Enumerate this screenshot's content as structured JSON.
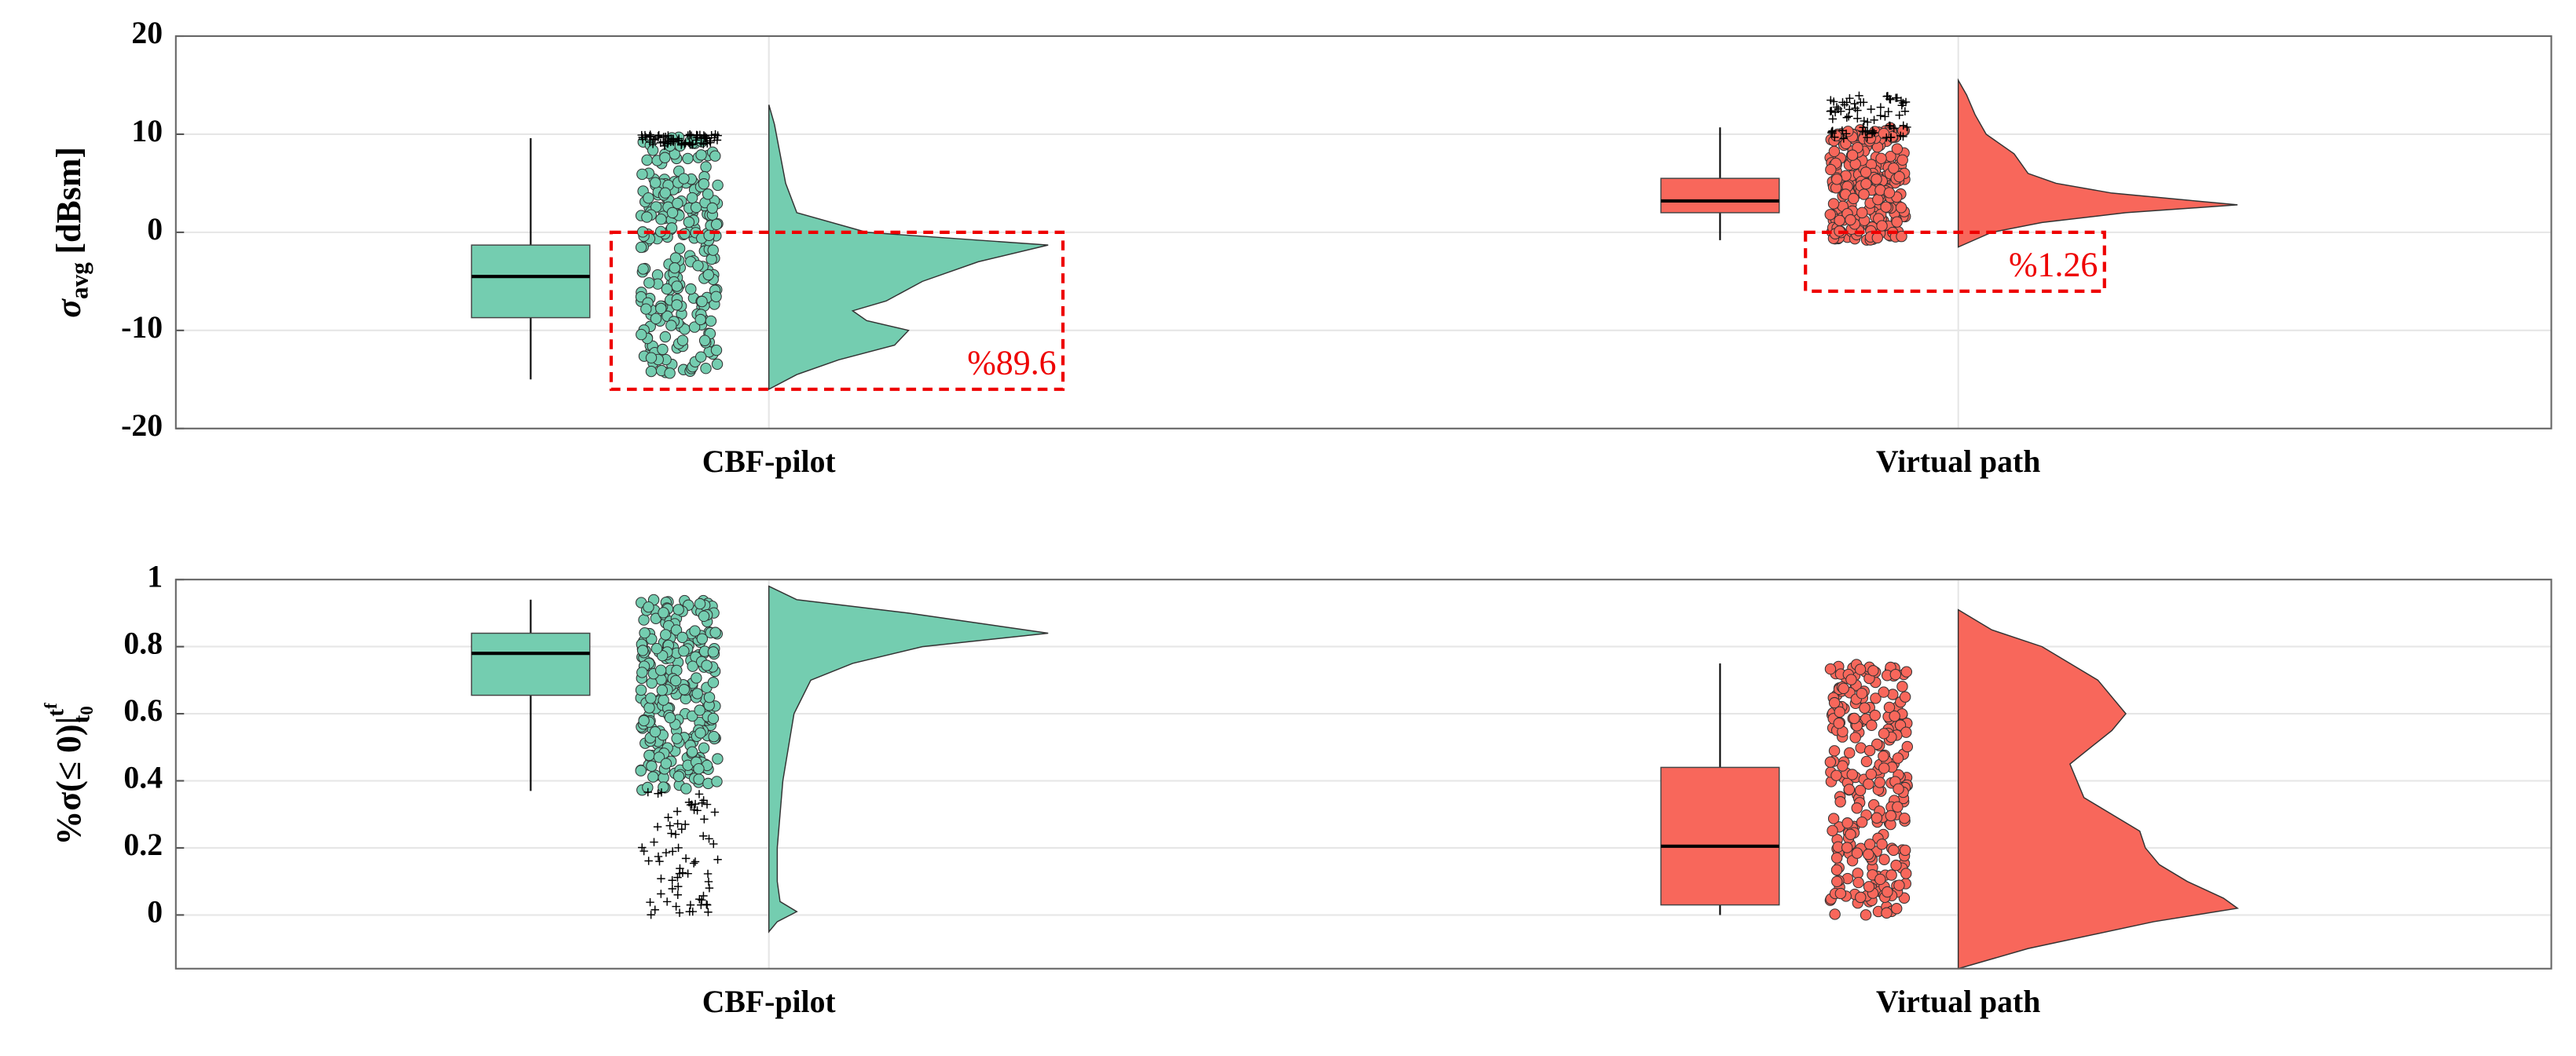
{
  "chart_data": [
    {
      "type": "raincloud",
      "ylabel": {
        "main": "σ",
        "sub": "avg",
        "unit": "[dBsm]"
      },
      "ylim": [
        -20,
        20
      ],
      "yticks": [
        -20,
        -10,
        0,
        10,
        20
      ],
      "grid": true,
      "groups": [
        {
          "name": "CBF-pilot",
          "color": "#74cdb0",
          "box": {
            "min": -15,
            "q1": -8.7,
            "median": -4.5,
            "q3": -1.3,
            "max": 9.6
          },
          "scatter_range": [
            -14.5,
            9.8
          ],
          "outlier_range": [
            8.8,
            10
          ],
          "violin": {
            "y": [
              13,
              11,
              8,
              5,
              2,
              0,
              -1.3,
              -3,
              -5,
              -7,
              -8,
              -9,
              -10,
              -11.5,
              -13,
              -14.5,
              -16
            ],
            "density": [
              0,
              0.02,
              0.04,
              0.06,
              0.1,
              0.35,
              1.0,
              0.75,
              0.55,
              0.42,
              0.3,
              0.35,
              0.5,
              0.45,
              0.25,
              0.1,
              0
            ]
          },
          "annotation": {
            "text": "%89.6",
            "ylim": [
              -16,
              0
            ]
          }
        },
        {
          "name": "Virtual path",
          "color": "#f8675b",
          "box": {
            "min": -0.8,
            "q1": 2,
            "median": 3.2,
            "q3": 5.5,
            "max": 10.7
          },
          "scatter_range": [
            -0.8,
            10.7
          ],
          "outlier_range": [
            9.5,
            14
          ],
          "violin": {
            "y": [
              15.5,
              14,
              12,
              10,
              8,
              6,
              5,
              4,
              2.8,
              2,
              1,
              0,
              -1.5
            ],
            "density": [
              0,
              0.03,
              0.06,
              0.1,
              0.2,
              0.25,
              0.35,
              0.55,
              1.0,
              0.6,
              0.3,
              0.12,
              0
            ]
          },
          "annotation": {
            "text": "%1.26",
            "ylim": [
              -6,
              0
            ]
          }
        }
      ]
    },
    {
      "type": "raincloud",
      "ylabel": {
        "main": "%σ(≤ 0)|",
        "sup": "t",
        "sup_sub": "f",
        "sub": "t",
        "sub_sub": "0"
      },
      "ylim": [
        -0.16,
        1
      ],
      "yticks": [
        0,
        0.2,
        0.4,
        0.6,
        0.8,
        1
      ],
      "grid": true,
      "groups": [
        {
          "name": "CBF-pilot",
          "color": "#74cdb0",
          "box": {
            "min": 0.37,
            "q1": 0.655,
            "median": 0.78,
            "q3": 0.84,
            "max": 0.94
          },
          "scatter_range": [
            0.37,
            0.94
          ],
          "outlier_range": [
            0,
            0.37
          ],
          "violin": {
            "y": [
              0.98,
              0.94,
              0.9,
              0.84,
              0.8,
              0.75,
              0.7,
              0.6,
              0.5,
              0.4,
              0.3,
              0.2,
              0.1,
              0.04,
              0.01,
              -0.02,
              -0.05
            ],
            "density": [
              0,
              0.1,
              0.5,
              1.0,
              0.55,
              0.3,
              0.15,
              0.09,
              0.07,
              0.05,
              0.04,
              0.03,
              0.03,
              0.04,
              0.1,
              0.03,
              0
            ]
          }
        },
        {
          "name": "Virtual path",
          "color": "#f8675b",
          "box": {
            "min": 0,
            "q1": 0.03,
            "median": 0.205,
            "q3": 0.44,
            "max": 0.75
          },
          "scatter_range": [
            0,
            0.75
          ],
          "violin": {
            "y": [
              0.91,
              0.85,
              0.8,
              0.7,
              0.6,
              0.55,
              0.45,
              0.35,
              0.3,
              0.25,
              0.2,
              0.15,
              0.1,
              0.05,
              0.02,
              -0.02,
              -0.1,
              -0.16
            ],
            "density": [
              0,
              0.12,
              0.3,
              0.5,
              0.6,
              0.55,
              0.4,
              0.45,
              0.55,
              0.65,
              0.67,
              0.72,
              0.82,
              0.95,
              1.0,
              0.7,
              0.25,
              0
            ]
          }
        }
      ]
    }
  ]
}
